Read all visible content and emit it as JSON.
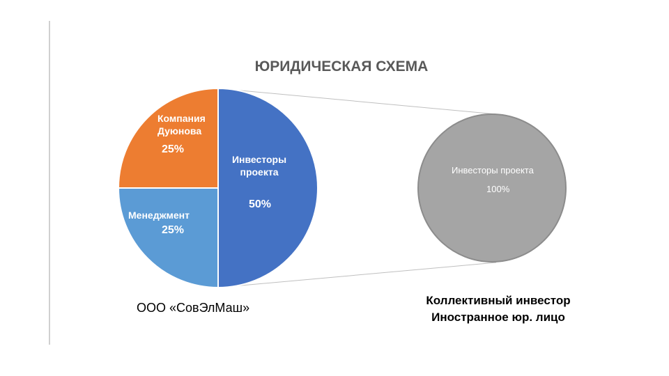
{
  "chart_data": [
    {
      "type": "pie",
      "title": "ЮРИДИЧЕСКАЯ СХЕМА",
      "categories": [
        "Инвесторы проекта",
        "Менеджмент",
        "Компания Дуюнова"
      ],
      "values": [
        50,
        25,
        25
      ],
      "value_labels": [
        "50%",
        "25%",
        "25%"
      ],
      "colors": [
        "#4472c4",
        "#5b9bd5",
        "#ed7d31"
      ],
      "caption": "ООО «СовЭлМаш»"
    },
    {
      "type": "pie",
      "categories": [
        "Инвесторы проекта"
      ],
      "values": [
        100
      ],
      "value_labels": [
        "100%"
      ],
      "colors": [
        "#a5a5a5"
      ],
      "caption": [
        "Коллективный инвестор",
        "Иностранное юр. лицо"
      ]
    }
  ]
}
